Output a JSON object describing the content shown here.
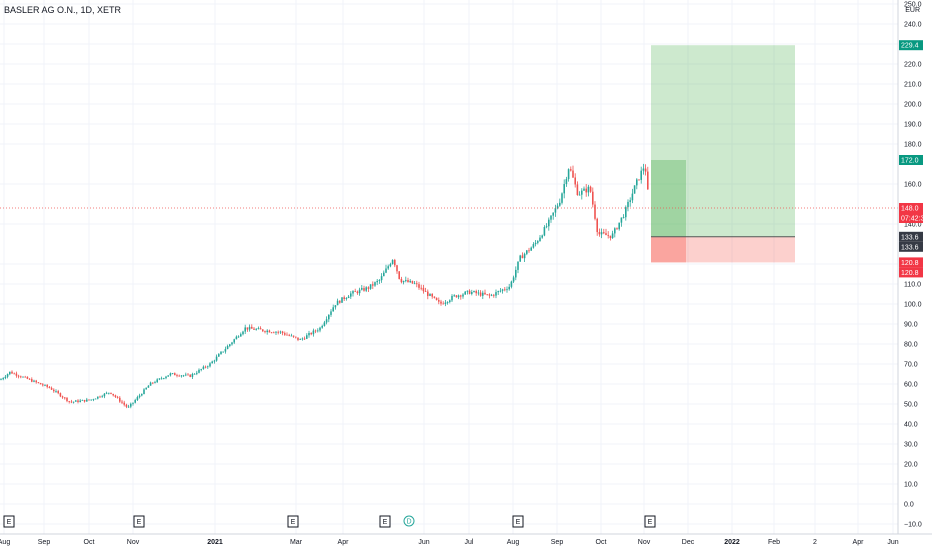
{
  "header": {
    "symbol_title": "BASLER AG O.N., 1D, XETR"
  },
  "colors": {
    "up": "#26a69a",
    "down": "#ef5350",
    "target_zone": "#4caf50",
    "stop_zone": "#f44336",
    "grid": "#f0f3fa"
  },
  "chart_data": {
    "type": "candlestick",
    "title": "BASLER AG O.N., 1D, XETR",
    "currency": "EUR",
    "ylim": [
      -10,
      250
    ],
    "y_ticks": [
      -10,
      0,
      10,
      20,
      30,
      40,
      50,
      60,
      70,
      80,
      90,
      100,
      110,
      120,
      140,
      160,
      180,
      190,
      200,
      210,
      220,
      230,
      240,
      250
    ],
    "y_tick_labels": [
      "−10.0",
      "0.0",
      "10.0",
      "20.0",
      "30.0",
      "40.0",
      "50.0",
      "60.0",
      "70.0",
      "80.0",
      "90.0",
      "100.0",
      "110.0",
      "120.0",
      "140.0",
      "160.0",
      "180.0",
      "190.0",
      "200.0",
      "210.0",
      "220.0",
      "230.0",
      "240.0",
      "250.0"
    ],
    "x_labels": [
      "Aug",
      "Sep",
      "Oct",
      "Nov",
      "2021",
      "Mar",
      "Apr",
      "Jun",
      "Jul",
      "Aug",
      "Sep",
      "Oct",
      "Nov",
      "Dec",
      "2022",
      "Feb",
      "2",
      "Apr",
      "Jun"
    ],
    "price_path": [
      [
        0,
        62
      ],
      [
        10,
        66
      ],
      [
        30,
        62
      ],
      [
        50,
        58
      ],
      [
        70,
        51
      ],
      [
        90,
        52
      ],
      [
        110,
        56
      ],
      [
        128,
        48
      ],
      [
        150,
        60
      ],
      [
        170,
        65
      ],
      [
        190,
        64
      ],
      [
        210,
        70
      ],
      [
        230,
        80
      ],
      [
        245,
        88
      ],
      [
        260,
        87
      ],
      [
        280,
        86
      ],
      [
        300,
        82
      ],
      [
        320,
        88
      ],
      [
        335,
        100
      ],
      [
        350,
        105
      ],
      [
        368,
        108
      ],
      [
        380,
        112
      ],
      [
        393,
        123
      ],
      [
        400,
        112
      ],
      [
        415,
        110
      ],
      [
        430,
        104
      ],
      [
        440,
        100
      ],
      [
        455,
        104
      ],
      [
        470,
        106
      ],
      [
        490,
        104
      ],
      [
        510,
        109
      ],
      [
        520,
        123
      ],
      [
        535,
        130
      ],
      [
        548,
        140
      ],
      [
        560,
        152
      ],
      [
        569,
        169
      ],
      [
        578,
        155
      ],
      [
        590,
        158
      ],
      [
        598,
        135
      ],
      [
        612,
        134
      ],
      [
        625,
        146
      ],
      [
        636,
        160
      ],
      [
        645,
        170
      ],
      [
        650,
        145
      ]
    ],
    "position": {
      "entry": 133.6,
      "target": 229.4,
      "stop": 120.8,
      "current": 148.0,
      "current_high_in_zone": 172.0
    },
    "price_labels": [
      {
        "key": "target",
        "text": "229.4",
        "value": 229.4,
        "style": "green"
      },
      {
        "key": "high",
        "text": "172.0",
        "value": 172.0,
        "style": "green"
      },
      {
        "key": "last",
        "text": "148.0",
        "value": 148.0,
        "style": "red"
      },
      {
        "key": "countdown",
        "text": "07:42:30",
        "value": 148.0,
        "style": "red-sub"
      },
      {
        "key": "entry1",
        "text": "133.6",
        "value": 133.6,
        "style": "dark"
      },
      {
        "key": "entry2",
        "text": "133.6",
        "value": 133.6,
        "style": "dark-sub"
      },
      {
        "key": "stop1",
        "text": "120.8",
        "value": 120.8,
        "style": "red"
      },
      {
        "key": "stop2",
        "text": "120.8",
        "value": 120.8,
        "style": "red-sub"
      }
    ],
    "events": [
      {
        "type": "E",
        "x_label_index": 0
      },
      {
        "type": "E",
        "x_label_index": 1
      },
      {
        "type": "E",
        "x_label_index": 2
      },
      {
        "type": "E",
        "x_label_index": 3
      },
      {
        "type": "D",
        "x_label_index": 4
      },
      {
        "type": "E",
        "x_label_index": 5
      },
      {
        "type": "E",
        "x_label_index": 6
      }
    ],
    "event_labels": [
      "E",
      "E",
      "E",
      "E",
      "D",
      "E",
      "E"
    ]
  }
}
